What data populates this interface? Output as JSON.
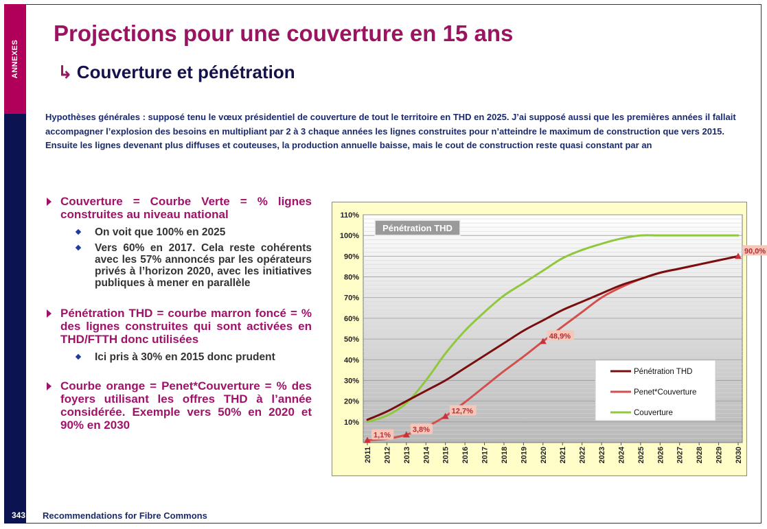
{
  "sidebar": {
    "label": "ANNEXES"
  },
  "header": {
    "title": "Projections pour une couverture en 15 ans",
    "arrow": "↳",
    "subtitle": "Couverture et pénétration"
  },
  "hypotheses": "Hypothèses générales : supposé tenu le vœux présidentiel de couverture de tout le territoire en THD en 2025. J’ai supposé aussi que les premières années il fallait accompagner l’explosion des besoins en multipliant par 2 à 3 chaque années les lignes construites pour n’atteindre le maximum de construction que vers 2015. Ensuite les lignes devenant plus diffuses et couteuses, la production annuelle baisse, mais le cout de construction reste quasi constant par an",
  "bullets": [
    {
      "text": "Couverture = Courbe Verte = % lignes construites au niveau national",
      "sub": [
        "On voit que 100% en 2025",
        "Vers 60% en 2017. Cela reste cohérents avec les 57% annoncés par les opérateurs privés à l’horizon 2020, avec les initiatives publiques à mener en parallèle"
      ]
    },
    {
      "text": "Pénétration THD = courbe marron foncé = % des lignes construites qui sont activées en THD/FTTH donc utilisées",
      "sub": [
        "Ici pris à 30% en 2015 donc prudent"
      ]
    },
    {
      "text": "Courbe orange = Penet*Couverture = % des foyers utilisant les offres THD à l’année considérée. Exemple vers 50% en 2020 et 90% en 2030",
      "sub": []
    }
  ],
  "footer": {
    "page": "343",
    "text": "Recommendations for Fibre Commons"
  },
  "chart_data": {
    "type": "line",
    "title": "Pénétration THD",
    "x": [
      2011,
      2012,
      2013,
      2014,
      2015,
      2016,
      2017,
      2018,
      2019,
      2020,
      2021,
      2022,
      2023,
      2024,
      2025,
      2026,
      2027,
      2028,
      2029,
      2030
    ],
    "series": [
      {
        "name": "Pénétration THD",
        "color": "#7a0e0e",
        "values": [
          11,
          15,
          20,
          25,
          30,
          36,
          42,
          48,
          54,
          59,
          64,
          68,
          72,
          76,
          79,
          82,
          84,
          86,
          88,
          90
        ]
      },
      {
        "name": "Penet*Couverture",
        "color": "#d44e4e",
        "values": [
          1.1,
          1.8,
          3.8,
          7.5,
          12.7,
          19.5,
          27,
          34.5,
          41.5,
          48.9,
          56,
          63,
          70,
          75,
          79,
          82,
          84,
          86,
          88,
          90
        ]
      },
      {
        "name": "Couverture",
        "color": "#8fc83c",
        "values": [
          10,
          13,
          19,
          30,
          43,
          54,
          63,
          71,
          77,
          83,
          89,
          93,
          96,
          98.5,
          100,
          100,
          100,
          100,
          100,
          100
        ]
      }
    ],
    "data_labels": [
      {
        "series": 1,
        "index": 0,
        "label": "1,1%"
      },
      {
        "series": 1,
        "index": 2,
        "label": "3,8%"
      },
      {
        "series": 1,
        "index": 4,
        "label": "12,7%"
      },
      {
        "series": 1,
        "index": 9,
        "label": "48,9%"
      },
      {
        "series": 1,
        "index": 19,
        "label": "90,0%"
      }
    ],
    "y_ticks": [
      "10%",
      "20%",
      "30%",
      "40%",
      "50%",
      "60%",
      "70%",
      "80%",
      "90%",
      "100%",
      "110%"
    ],
    "ylim": [
      0,
      110
    ],
    "grid": true,
    "legend_position": "bottom-right"
  }
}
